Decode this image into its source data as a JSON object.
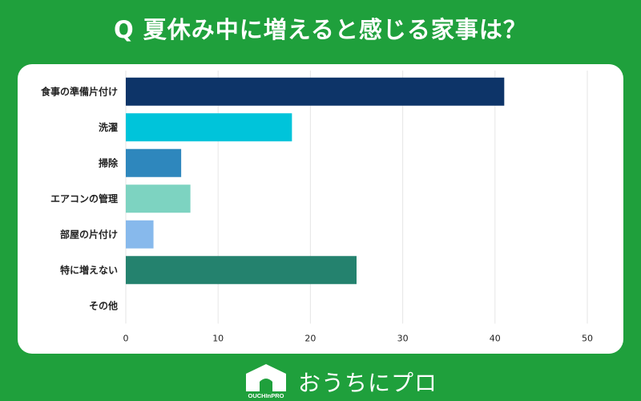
{
  "title": "Q 夏休み中に増えると感じる家事は？",
  "brand": {
    "text": "おうちにプロ",
    "logo_text": "OUCHInPRO"
  },
  "colors": {
    "background": "#1fa03c",
    "panel": "#ffffff",
    "grid": "#e6e6e6"
  },
  "chart_data": {
    "type": "bar",
    "orientation": "horizontal",
    "categories": [
      "食事の準備片付け",
      "洗濯",
      "掃除",
      "エアコンの管理",
      "部屋の片付け",
      "特に増えない",
      "その他"
    ],
    "values": [
      41,
      18,
      6,
      7,
      3,
      25,
      0
    ],
    "bar_colors": [
      "#0d3468",
      "#00c4da",
      "#2e87bd",
      "#7dd3c1",
      "#87b9ec",
      "#24826e",
      "#cccccc"
    ],
    "xlim": [
      0,
      50
    ],
    "xticks": [
      0,
      10,
      20,
      30,
      40,
      50
    ],
    "grid": true
  }
}
